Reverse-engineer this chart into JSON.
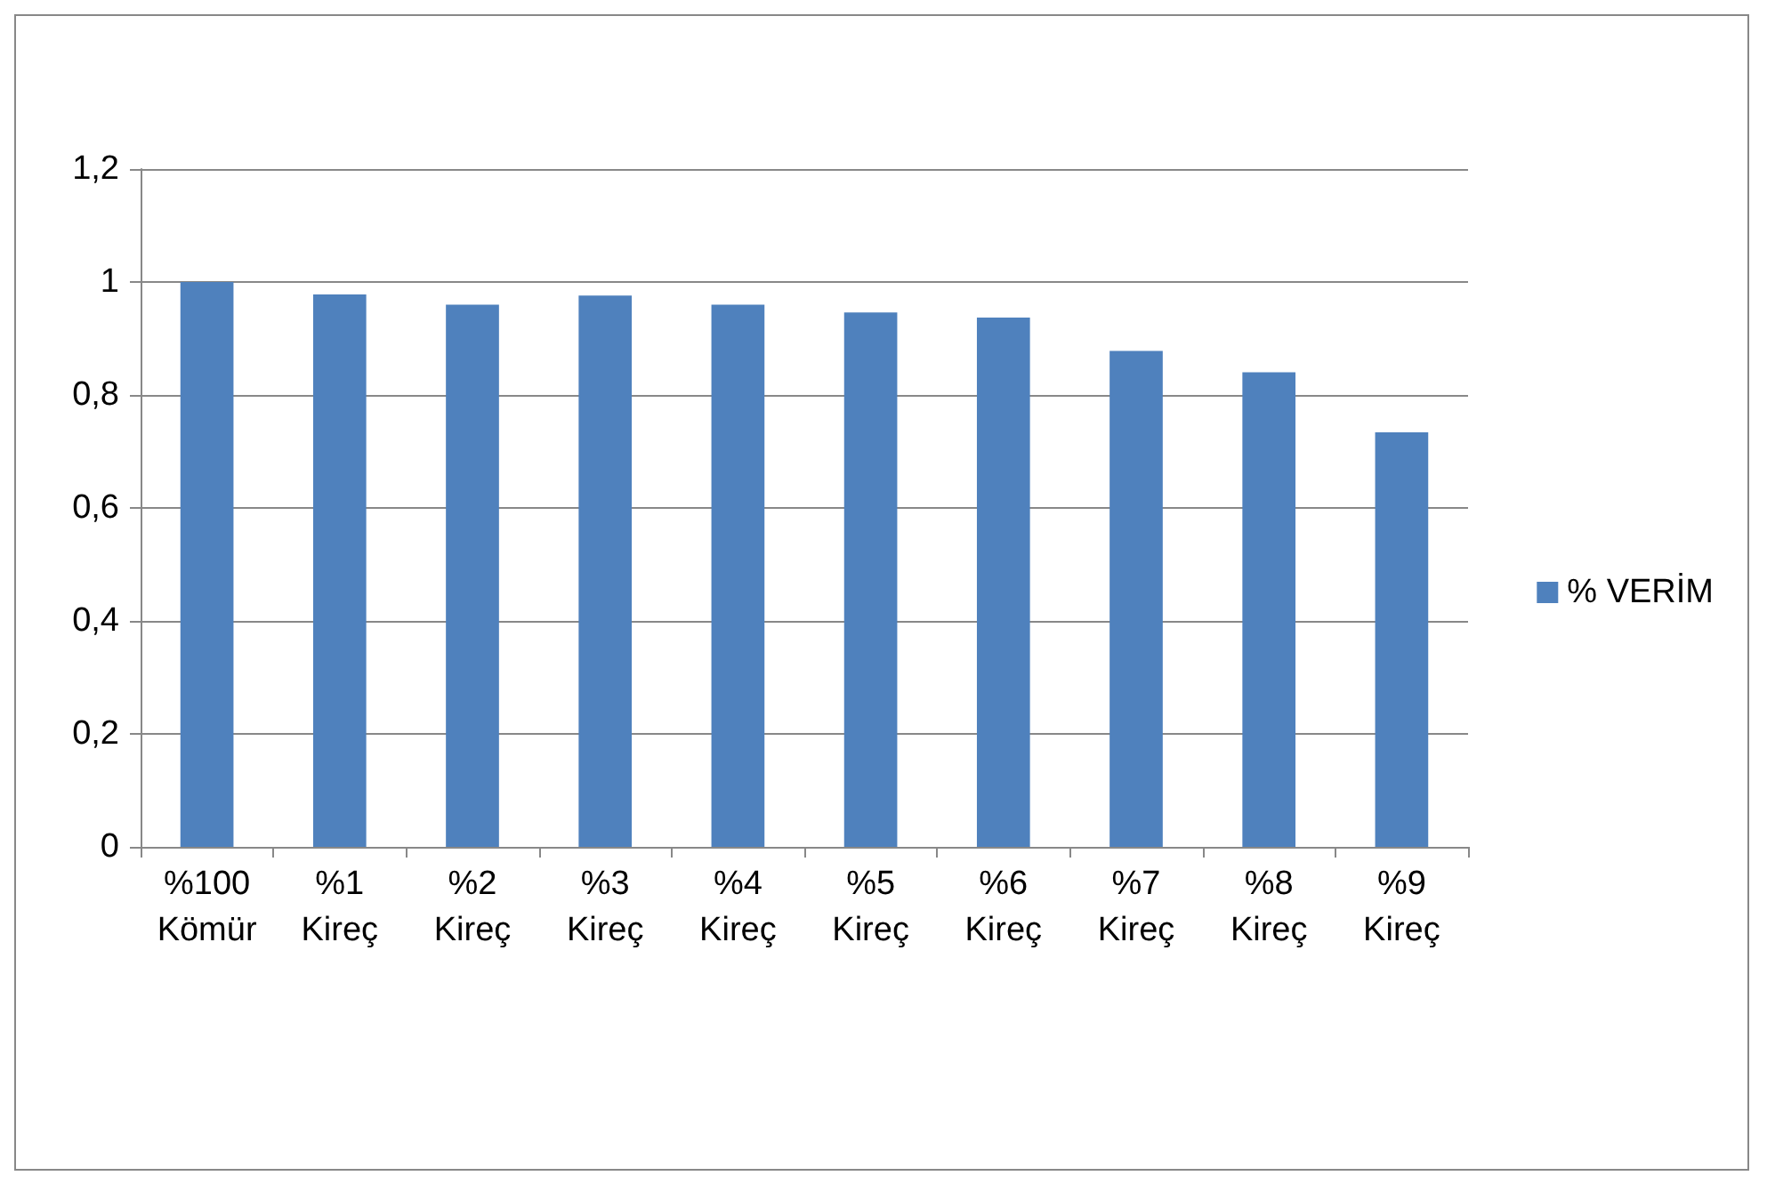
{
  "chart_data": {
    "type": "bar",
    "categories": [
      "%100 Kömür",
      "%1 Kireç",
      "%2 Kireç",
      "%3 Kireç",
      "%4 Kireç",
      "%5 Kireç",
      "%6 Kireç",
      "%7 Kireç",
      "%8 Kireç",
      "%9 Kireç"
    ],
    "series": [
      {
        "name": "% VERİM",
        "color": "#4f81bd",
        "values": [
          1.0,
          0.978,
          0.96,
          0.976,
          0.96,
          0.946,
          0.937,
          0.878,
          0.84,
          0.734
        ]
      }
    ],
    "ylim": [
      0,
      1.2
    ],
    "yticks": [
      0,
      {
        "value": 0.2,
        "label": "0,2"
      },
      {
        "value": 0.4,
        "label": "0,4"
      },
      {
        "value": 0.6,
        "label": "0,6"
      },
      {
        "value": 0.8,
        "label": "0,8"
      },
      1,
      {
        "value": 1.2,
        "label": "1,2"
      }
    ],
    "grid": "y",
    "legend": "right"
  }
}
